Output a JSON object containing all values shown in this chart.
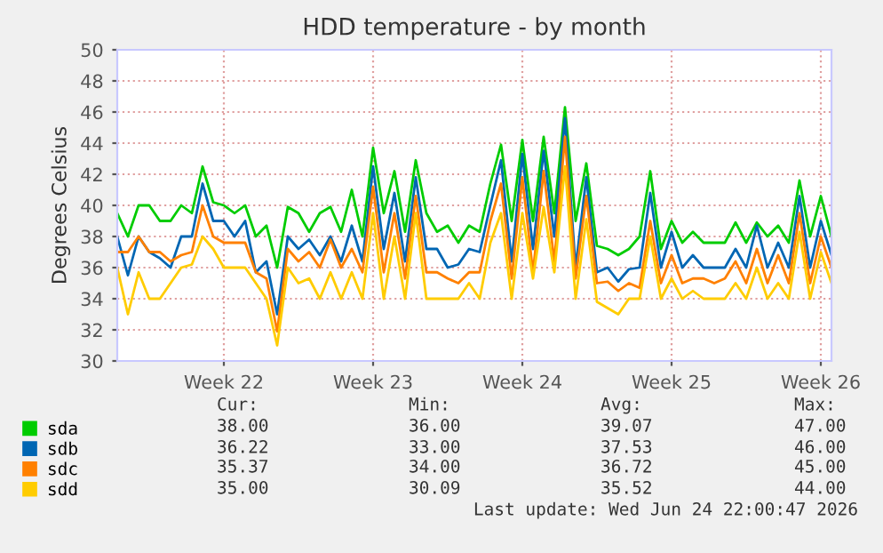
{
  "chart_data": {
    "type": "line",
    "title": "HDD temperature - by month",
    "ylabel": "Degrees Celsius",
    "categories": [
      null,
      null,
      null,
      null,
      null,
      null,
      null,
      null,
      null,
      null,
      "Week 22",
      null,
      null,
      null,
      null,
      null,
      null,
      null,
      null,
      null,
      null,
      null,
      null,
      null,
      "Week 23",
      null,
      null,
      null,
      null,
      null,
      null,
      null,
      null,
      null,
      null,
      null,
      null,
      null,
      "Week 24",
      null,
      null,
      null,
      null,
      null,
      null,
      null,
      null,
      null,
      null,
      null,
      null,
      null,
      "Week 25",
      null,
      null,
      null,
      null,
      null,
      null,
      null,
      null,
      null,
      null,
      null,
      null,
      null,
      "Week 26",
      null
    ],
    "series": [
      {
        "name": "sda",
        "color": "#00cc00",
        "values": [
          39.5,
          38,
          40,
          40,
          39,
          39,
          40,
          39.5,
          42.5,
          40.2,
          40,
          39.5,
          40,
          38,
          38.7,
          36,
          39.9,
          39.5,
          38.3,
          39.5,
          39.9,
          38.3,
          41,
          38,
          43.7,
          39.5,
          42.2,
          38.3,
          42.9,
          39.5,
          38.3,
          38.7,
          37.6,
          38.7,
          38.3,
          41.4,
          43.9,
          39,
          44.2,
          39,
          44.4,
          39.5,
          46.3,
          39,
          42.7,
          37.4,
          37.2,
          36.8,
          37.2,
          38,
          42.2,
          37.2,
          39,
          37.6,
          38.3,
          37.6,
          37.6,
          37.6,
          38.9,
          37.6,
          38.9,
          38,
          38.7,
          37.6,
          41.6,
          38,
          40.6,
          38
        ]
      },
      {
        "name": "sdb",
        "color": "#0066b3",
        "values": [
          38,
          35.5,
          38,
          37,
          36.6,
          36,
          38,
          38,
          41.4,
          39,
          39,
          38,
          39,
          35.7,
          36.4,
          33,
          38,
          37.2,
          37.8,
          36.8,
          38,
          36.4,
          38.7,
          36.4,
          42.5,
          37.2,
          40.8,
          36.4,
          41.8,
          37.2,
          37.2,
          36,
          36.2,
          37.2,
          37,
          40,
          42.9,
          36.4,
          43.3,
          37.2,
          43.5,
          38,
          45.6,
          36,
          41.8,
          35.7,
          36,
          35.1,
          35.9,
          36,
          40.8,
          36,
          38.3,
          36,
          36.8,
          36,
          36,
          36,
          37.2,
          36,
          38.7,
          36,
          37.6,
          36,
          40.6,
          36,
          39,
          36.8
        ]
      },
      {
        "name": "sdc",
        "color": "#ff8000",
        "values": [
          37,
          37,
          38,
          37,
          37,
          36.4,
          36.8,
          37,
          40,
          38,
          37.6,
          37.6,
          37.6,
          35.7,
          35.3,
          31.9,
          37.2,
          36.4,
          37,
          36,
          37.8,
          36,
          37.2,
          35.7,
          41.2,
          35.7,
          39.5,
          35.3,
          40.6,
          35.7,
          35.7,
          35.3,
          35,
          35.7,
          35.7,
          39,
          41.4,
          35.3,
          41.8,
          35.7,
          42.2,
          36.4,
          44.4,
          35.3,
          40.6,
          35,
          35.1,
          34.5,
          35,
          34.7,
          39,
          35,
          36.8,
          35,
          35.3,
          35.3,
          35,
          35.3,
          36.4,
          35,
          37.2,
          35,
          36.8,
          35,
          39.5,
          35,
          38,
          36
        ]
      },
      {
        "name": "sdd",
        "color": "#ffcc00",
        "values": [
          36,
          33,
          35.7,
          34,
          34,
          35,
          36,
          36.2,
          38,
          37.2,
          36,
          36,
          36,
          35,
          34,
          31,
          36,
          35,
          35.3,
          34,
          35.7,
          34,
          35.7,
          34,
          39.5,
          34,
          38,
          34,
          39.5,
          34,
          34,
          34,
          34,
          35,
          34,
          37.6,
          39.5,
          34,
          39.5,
          35.3,
          39.9,
          35.7,
          42.5,
          34,
          39.1,
          33.8,
          33.4,
          33,
          34,
          34,
          38,
          34,
          35.3,
          34,
          34.5,
          34,
          34,
          34,
          35,
          34,
          36,
          34,
          35,
          34,
          38.3,
          34,
          37,
          35
        ]
      }
    ],
    "ylim": [
      30,
      50
    ],
    "yticks": [
      30,
      32,
      34,
      36,
      38,
      40,
      42,
      44,
      46,
      48,
      50
    ],
    "grid": true,
    "legend": "bottom left",
    "annotations": [
      "Cur:",
      "Min:",
      "Avg:",
      "Max:",
      "38.00",
      "36.00",
      "39.07",
      "47.00",
      "36.22",
      "33.00",
      "37.53",
      "46.00",
      "35.37",
      "34.00",
      "36.72",
      "45.00",
      "35.00",
      "30.09",
      "35.52",
      "44.00",
      "Last update: Wed Jun 24 22:00:47 2026"
    ]
  }
}
